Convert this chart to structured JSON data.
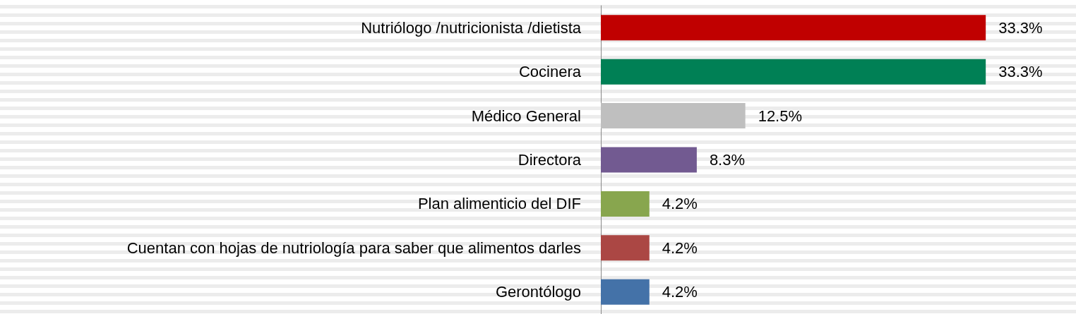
{
  "chart_data": {
    "type": "bar",
    "orientation": "horizontal",
    "categories": [
      "Nutriólogo /nutricionista /dietista",
      "Cocinera",
      "Médico General",
      "Directora",
      "Plan alimenticio del DIF",
      "Cuentan con hojas de nutriología para saber que alimentos darles",
      "Gerontólogo"
    ],
    "values": [
      33.3,
      33.3,
      12.5,
      8.3,
      4.2,
      4.2,
      4.2
    ],
    "colors": [
      "#c00000",
      "#008055",
      "#bfbfbf",
      "#725a91",
      "#88a64e",
      "#ab4744",
      "#4472a8"
    ],
    "value_labels": [
      "33.3%",
      "33.3%",
      "12.5%",
      "8.3%",
      "4.2%",
      "4.2%",
      "4.2%"
    ],
    "grid": false
  }
}
